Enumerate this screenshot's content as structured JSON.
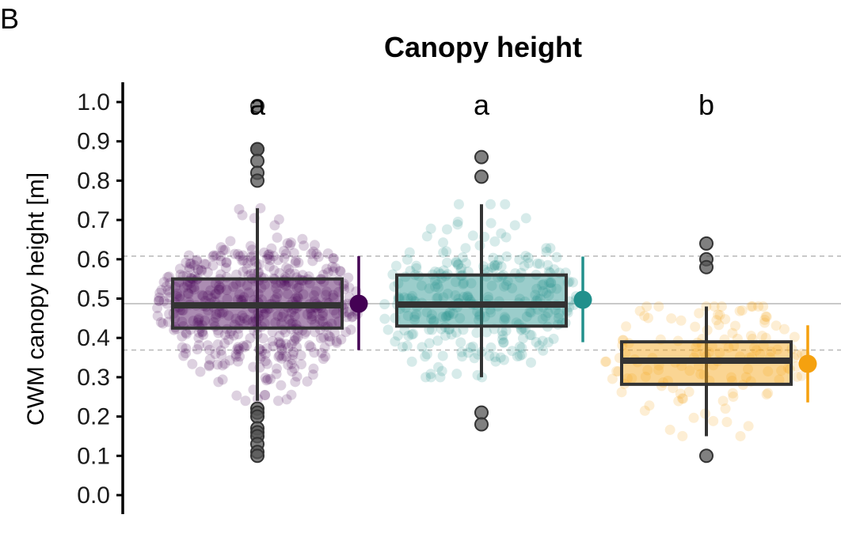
{
  "panel_label": "B",
  "chart_data": {
    "type": "box",
    "title": "Canopy height",
    "xlabel": "",
    "ylabel": "CWM canopy height [m]",
    "ylim": [
      0,
      1.0
    ],
    "yticks": [
      0.0,
      0.1,
      0.2,
      0.3,
      0.4,
      0.5,
      0.6,
      0.7,
      0.8,
      0.9,
      1.0
    ],
    "ytick_labels": [
      "0.0",
      "0.1",
      "0.2",
      "0.3",
      "0.4",
      "0.5",
      "0.6",
      "0.7",
      "0.8",
      "0.9",
      "1.0"
    ],
    "reference_lines": {
      "mean": 0.487,
      "lower": 0.369,
      "upper": 0.608
    },
    "groups": [
      {
        "letter": "a",
        "color": "#440154",
        "box": {
          "q1": 0.425,
          "median": 0.483,
          "q3": 0.55,
          "whisker_low": 0.24,
          "whisker_high": 0.73
        },
        "outliers": [
          0.99,
          0.88,
          0.88,
          0.85,
          0.82,
          0.8,
          0.22,
          0.21,
          0.2,
          0.17,
          0.16,
          0.15,
          0.13,
          0.11,
          0.1
        ],
        "summary": {
          "mean": 0.487,
          "low": 0.369,
          "high": 0.608
        },
        "n_points": 520
      },
      {
        "letter": "a",
        "color": "#21908C",
        "box": {
          "q1": 0.43,
          "median": 0.485,
          "q3": 0.56,
          "whisker_low": 0.3,
          "whisker_high": 0.74
        },
        "outliers": [
          0.86,
          0.81,
          0.21,
          0.18
        ],
        "summary": {
          "mean": 0.497,
          "low": 0.389,
          "high": 0.607
        },
        "n_points": 300
      },
      {
        "letter": "b",
        "color": "#F5A10F",
        "box": {
          "q1": 0.282,
          "median": 0.342,
          "q3": 0.39,
          "whisker_low": 0.15,
          "whisker_high": 0.48
        },
        "outliers": [
          0.64,
          0.6,
          0.58,
          0.1
        ],
        "summary": {
          "mean": 0.334,
          "low": 0.236,
          "high": 0.432
        },
        "n_points": 140
      }
    ]
  }
}
